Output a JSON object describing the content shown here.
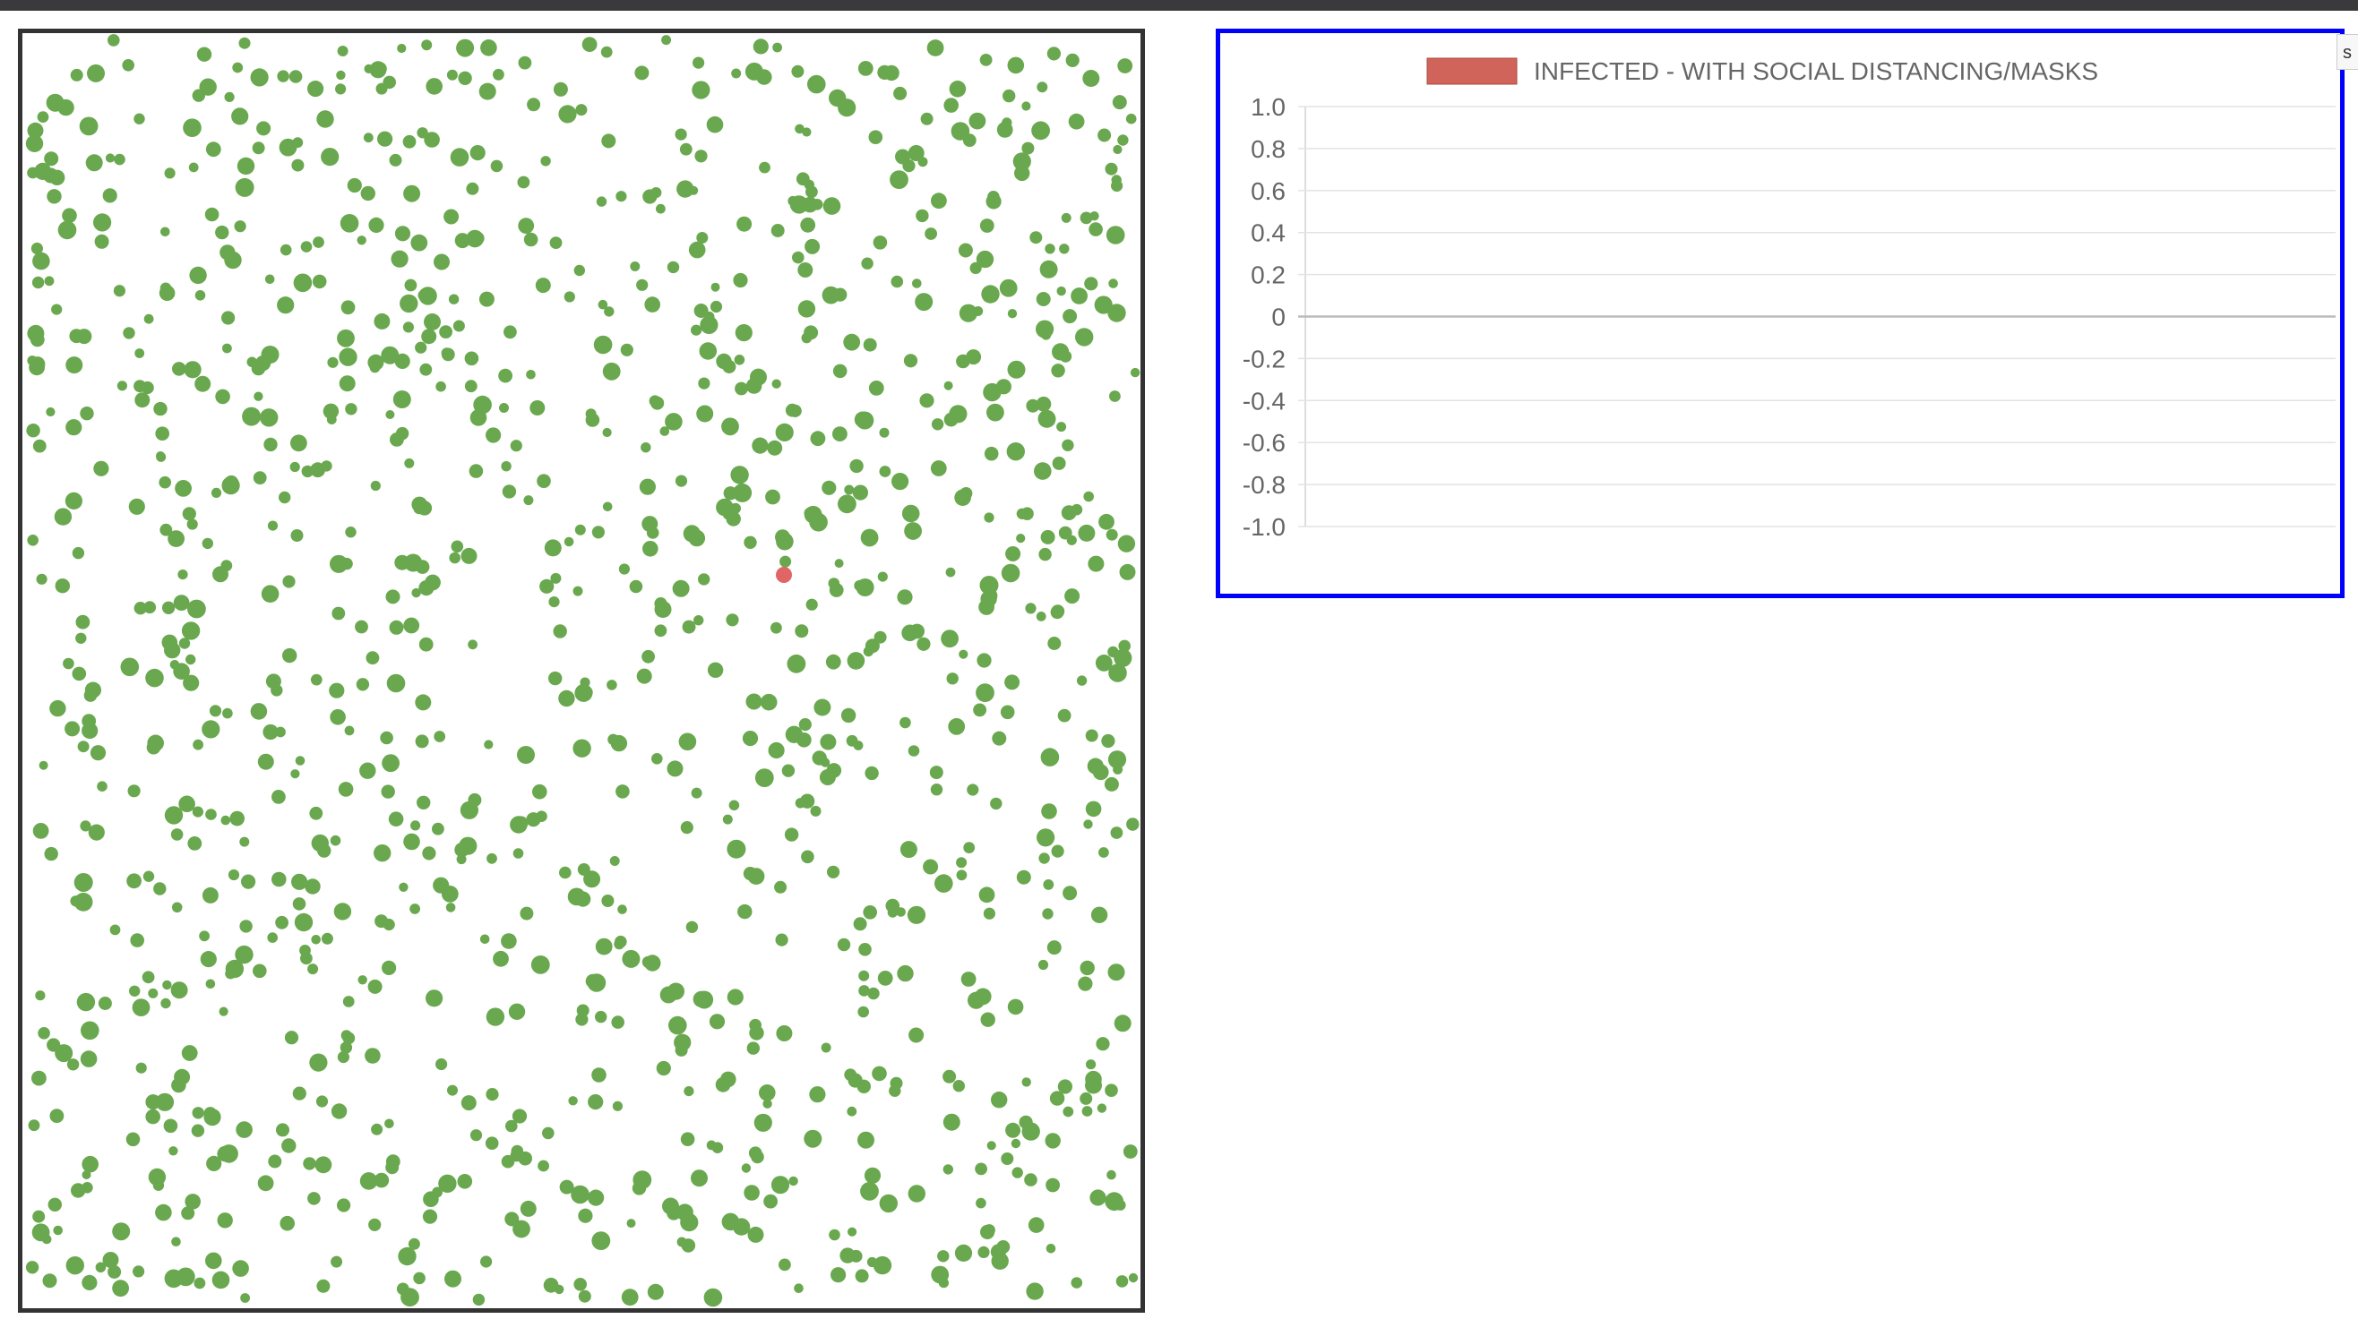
{
  "simulation": {
    "healthy_color": "#6aa84f",
    "infected_color": "#e06666",
    "border_color": "#333333"
  },
  "edge_control": {
    "label": "s"
  },
  "chart_data": {
    "type": "line",
    "title": "",
    "series": [
      {
        "name": "INFECTED - WITH SOCIAL DISTANCING/MASKS",
        "color": "#d0645a",
        "values": []
      }
    ],
    "x": [],
    "xlabel": "",
    "ylabel": "",
    "ylim": [
      -1.0,
      1.0
    ],
    "yticks": [
      "1.0",
      "0.8",
      "0.6",
      "0.4",
      "0.2",
      "0",
      "-0.2",
      "-0.4",
      "-0.6",
      "-0.8",
      "-1.0"
    ],
    "grid": true,
    "legend": "top-center",
    "border_color": "#0000ff"
  }
}
